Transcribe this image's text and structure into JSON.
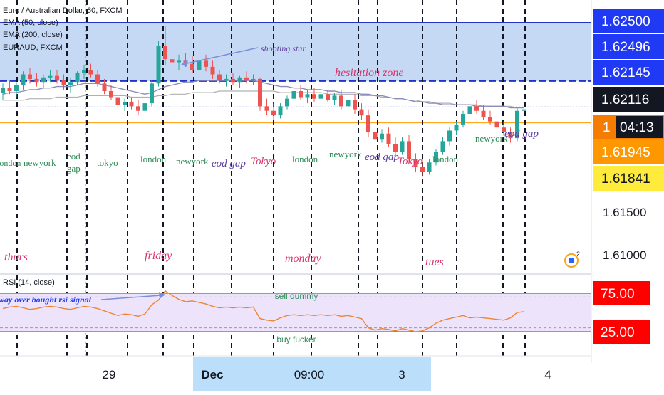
{
  "legend": {
    "symbol": "Euro / Australian Dollar, 60, FXCM",
    "ema50": "EMA (50, close)",
    "ema200": "EMA (200, close)",
    "compare": "EURAUD, FXCM"
  },
  "rsi_legend": "RSI (14, close)",
  "colors": {
    "up": "#26a69a",
    "down": "#ef5350",
    "zone": "#bcd2f2",
    "zone_line": "#2234c8",
    "ema50": "#8e8cb8",
    "ema200": "#b0b0b0",
    "rsi_line": "#ef8430",
    "rsi_bg": "#ede4fb",
    "session": "#2e8b57",
    "day": "#d8326d",
    "note": "#5b3fa0",
    "blue_tag": "#1f39f5"
  },
  "price_tags": [
    {
      "value": 1.625,
      "text": "1.62500",
      "bg": "#1f39f5",
      "fg": "#ffffff"
    },
    {
      "value": 1.62496,
      "text": "1.62496",
      "bg": "#1f39f5",
      "fg": "#ffffff"
    },
    {
      "value": 1.62145,
      "text": "1.62145",
      "bg": "#1f39f5",
      "fg": "#ffffff"
    },
    {
      "value": 1.62116,
      "text": "1.62116",
      "bg": "#131722",
      "fg": "#ffffff"
    },
    {
      "value": 1.62025,
      "text": "1",
      "text2": "04:13",
      "bg": "#f57c00",
      "fg": "#ffffff"
    },
    {
      "value": 1.61945,
      "text": "1.61945",
      "bg": "#ff9800",
      "fg": "#ffffff"
    },
    {
      "value": 1.61841,
      "text": "1.61841",
      "bg": "#ffeb3b",
      "fg": "#131722"
    }
  ],
  "price_axis": [
    "1.61500",
    "1.61000"
  ],
  "rsi_tags": [
    {
      "value": 75,
      "text": "75.00"
    },
    {
      "value": 25,
      "text": "25.00"
    }
  ],
  "time_axis": {
    "labels": [
      "29",
      "Dec",
      "09:00",
      "3",
      "4"
    ],
    "highlight_label": "Dec"
  },
  "annotations": {
    "shooting_star": "shooting star",
    "hesitation": "hesitation zone",
    "rsi_signal": "way over bought rsi signal",
    "sell": "sell dummy",
    "buy": "buy fucker",
    "eod_gap_top": "eod gap"
  },
  "sessions": [
    {
      "label": "london",
      "slot": "s1"
    },
    {
      "label": "newyork",
      "slot": "s2"
    },
    {
      "label": "eod",
      "slot": "s3"
    },
    {
      "label": "gap",
      "slot": "s4"
    },
    {
      "label": "tokyo",
      "slot": "s5"
    },
    {
      "label": "london",
      "slot": "s6"
    },
    {
      "label": "newyork",
      "slot": "s7"
    },
    {
      "label": "eod gap",
      "slot": "s8"
    },
    {
      "label": "Tokyo",
      "slot": "s9"
    },
    {
      "label": "london",
      "slot": "s10"
    },
    {
      "label": "newyork",
      "slot": "s11"
    },
    {
      "label": "eod gap",
      "slot": "s12"
    },
    {
      "label": "Tokyo",
      "slot": "s13"
    },
    {
      "label": "london",
      "slot": "s14"
    },
    {
      "label": "newyork",
      "slot": "s15"
    }
  ],
  "days": [
    "thurs",
    "friday",
    "monday",
    "tues"
  ],
  "chart_data": {
    "type": "candlestick",
    "interval": "60",
    "ylim": [
      1.6085,
      1.6265
    ],
    "hesitation_zone": [
      1.62116,
      1.625
    ],
    "horizontal_levels": [
      1.61945,
      1.61841
    ],
    "candles": [
      {
        "o": 1.6204,
        "h": 1.621,
        "l": 1.6199,
        "c": 1.6207
      },
      {
        "o": 1.6207,
        "h": 1.6212,
        "l": 1.6203,
        "c": 1.6205
      },
      {
        "o": 1.6205,
        "h": 1.6211,
        "l": 1.6201,
        "c": 1.6209
      },
      {
        "o": 1.6209,
        "h": 1.6218,
        "l": 1.6206,
        "c": 1.6216
      },
      {
        "o": 1.6216,
        "h": 1.622,
        "l": 1.621,
        "c": 1.6213
      },
      {
        "o": 1.6213,
        "h": 1.6217,
        "l": 1.6208,
        "c": 1.6211
      },
      {
        "o": 1.6211,
        "h": 1.6216,
        "l": 1.6207,
        "c": 1.6214
      },
      {
        "o": 1.6214,
        "h": 1.6219,
        "l": 1.6211,
        "c": 1.6215
      },
      {
        "o": 1.6215,
        "h": 1.6219,
        "l": 1.621,
        "c": 1.6212
      },
      {
        "o": 1.6212,
        "h": 1.6216,
        "l": 1.6206,
        "c": 1.6209
      },
      {
        "o": 1.6209,
        "h": 1.6214,
        "l": 1.6204,
        "c": 1.6211
      },
      {
        "o": 1.6211,
        "h": 1.6218,
        "l": 1.6209,
        "c": 1.6217
      },
      {
        "o": 1.6217,
        "h": 1.6222,
        "l": 1.6213,
        "c": 1.6219
      },
      {
        "o": 1.6219,
        "h": 1.6223,
        "l": 1.6214,
        "c": 1.6216
      },
      {
        "o": 1.6216,
        "h": 1.6219,
        "l": 1.6208,
        "c": 1.621
      },
      {
        "o": 1.621,
        "h": 1.6213,
        "l": 1.6203,
        "c": 1.6205
      },
      {
        "o": 1.6205,
        "h": 1.6209,
        "l": 1.6199,
        "c": 1.6201
      },
      {
        "o": 1.6201,
        "h": 1.6204,
        "l": 1.6193,
        "c": 1.6196
      },
      {
        "o": 1.6196,
        "h": 1.62,
        "l": 1.6192,
        "c": 1.6198
      },
      {
        "o": 1.6198,
        "h": 1.6201,
        "l": 1.6193,
        "c": 1.6195
      },
      {
        "o": 1.6195,
        "h": 1.6199,
        "l": 1.6189,
        "c": 1.6192
      },
      {
        "o": 1.6192,
        "h": 1.6198,
        "l": 1.619,
        "c": 1.6197
      },
      {
        "o": 1.6197,
        "h": 1.6212,
        "l": 1.6195,
        "c": 1.621
      },
      {
        "o": 1.621,
        "h": 1.6238,
        "l": 1.6208,
        "c": 1.6235
      },
      {
        "o": 1.6235,
        "h": 1.6248,
        "l": 1.6222,
        "c": 1.6226
      },
      {
        "o": 1.6226,
        "h": 1.6232,
        "l": 1.622,
        "c": 1.6224
      },
      {
        "o": 1.6224,
        "h": 1.6229,
        "l": 1.6219,
        "c": 1.6225
      },
      {
        "o": 1.6225,
        "h": 1.623,
        "l": 1.6221,
        "c": 1.6223
      },
      {
        "o": 1.6223,
        "h": 1.6228,
        "l": 1.6217,
        "c": 1.6219
      },
      {
        "o": 1.6219,
        "h": 1.6227,
        "l": 1.6216,
        "c": 1.6225
      },
      {
        "o": 1.6225,
        "h": 1.6229,
        "l": 1.6218,
        "c": 1.6221
      },
      {
        "o": 1.6221,
        "h": 1.6225,
        "l": 1.6213,
        "c": 1.6216
      },
      {
        "o": 1.6216,
        "h": 1.6219,
        "l": 1.621,
        "c": 1.6212
      },
      {
        "o": 1.6212,
        "h": 1.6216,
        "l": 1.6208,
        "c": 1.6213
      },
      {
        "o": 1.6213,
        "h": 1.6217,
        "l": 1.6209,
        "c": 1.6211
      },
      {
        "o": 1.6211,
        "h": 1.6215,
        "l": 1.6207,
        "c": 1.6214
      },
      {
        "o": 1.6214,
        "h": 1.6218,
        "l": 1.621,
        "c": 1.6212
      },
      {
        "o": 1.6212,
        "h": 1.6216,
        "l": 1.6209,
        "c": 1.6213
      },
      {
        "o": 1.6213,
        "h": 1.6214,
        "l": 1.6192,
        "c": 1.6195
      },
      {
        "o": 1.6195,
        "h": 1.62,
        "l": 1.6189,
        "c": 1.6192
      },
      {
        "o": 1.6192,
        "h": 1.6197,
        "l": 1.6186,
        "c": 1.6189
      },
      {
        "o": 1.6189,
        "h": 1.6197,
        "l": 1.6187,
        "c": 1.6195
      },
      {
        "o": 1.6195,
        "h": 1.6202,
        "l": 1.6193,
        "c": 1.62
      },
      {
        "o": 1.62,
        "h": 1.6207,
        "l": 1.6198,
        "c": 1.6205
      },
      {
        "o": 1.6205,
        "h": 1.6209,
        "l": 1.6199,
        "c": 1.6201
      },
      {
        "o": 1.6201,
        "h": 1.6206,
        "l": 1.6197,
        "c": 1.6203
      },
      {
        "o": 1.6203,
        "h": 1.6207,
        "l": 1.6198,
        "c": 1.62
      },
      {
        "o": 1.62,
        "h": 1.6205,
        "l": 1.6197,
        "c": 1.6203
      },
      {
        "o": 1.6203,
        "h": 1.6206,
        "l": 1.6198,
        "c": 1.6199
      },
      {
        "o": 1.6199,
        "h": 1.6204,
        "l": 1.6196,
        "c": 1.6202
      },
      {
        "o": 1.6202,
        "h": 1.6206,
        "l": 1.6193,
        "c": 1.6195
      },
      {
        "o": 1.6195,
        "h": 1.6201,
        "l": 1.6193,
        "c": 1.6199
      },
      {
        "o": 1.6199,
        "h": 1.6203,
        "l": 1.619,
        "c": 1.6193
      },
      {
        "o": 1.6193,
        "h": 1.6197,
        "l": 1.6186,
        "c": 1.6189
      },
      {
        "o": 1.6189,
        "h": 1.6193,
        "l": 1.6175,
        "c": 1.6178
      },
      {
        "o": 1.6178,
        "h": 1.6183,
        "l": 1.617,
        "c": 1.6173
      },
      {
        "o": 1.6173,
        "h": 1.618,
        "l": 1.6171,
        "c": 1.6177
      },
      {
        "o": 1.6177,
        "h": 1.6181,
        "l": 1.6168,
        "c": 1.617
      },
      {
        "o": 1.617,
        "h": 1.6175,
        "l": 1.6162,
        "c": 1.6165
      },
      {
        "o": 1.6165,
        "h": 1.6175,
        "l": 1.6163,
        "c": 1.6172
      },
      {
        "o": 1.6172,
        "h": 1.6176,
        "l": 1.6158,
        "c": 1.616
      },
      {
        "o": 1.616,
        "h": 1.6164,
        "l": 1.6152,
        "c": 1.6155
      },
      {
        "o": 1.6155,
        "h": 1.616,
        "l": 1.6149,
        "c": 1.6152
      },
      {
        "o": 1.6152,
        "h": 1.616,
        "l": 1.615,
        "c": 1.6158
      },
      {
        "o": 1.6158,
        "h": 1.6167,
        "l": 1.6156,
        "c": 1.6165
      },
      {
        "o": 1.6165,
        "h": 1.6175,
        "l": 1.6163,
        "c": 1.6172
      },
      {
        "o": 1.6172,
        "h": 1.6181,
        "l": 1.6169,
        "c": 1.6179
      },
      {
        "o": 1.6179,
        "h": 1.6185,
        "l": 1.6176,
        "c": 1.6183
      },
      {
        "o": 1.6183,
        "h": 1.6192,
        "l": 1.6181,
        "c": 1.619
      },
      {
        "o": 1.619,
        "h": 1.6198,
        "l": 1.6186,
        "c": 1.6195
      },
      {
        "o": 1.6195,
        "h": 1.6199,
        "l": 1.619,
        "c": 1.6192
      },
      {
        "o": 1.6192,
        "h": 1.6196,
        "l": 1.6186,
        "c": 1.6188
      },
      {
        "o": 1.6188,
        "h": 1.6192,
        "l": 1.6183,
        "c": 1.6185
      },
      {
        "o": 1.6185,
        "h": 1.6189,
        "l": 1.6179,
        "c": 1.6181
      },
      {
        "o": 1.6181,
        "h": 1.6185,
        "l": 1.6176,
        "c": 1.6178
      },
      {
        "o": 1.6178,
        "h": 1.6181,
        "l": 1.6171,
        "c": 1.6174
      },
      {
        "o": 1.6174,
        "h": 1.6194,
        "l": 1.6172,
        "c": 1.6192
      },
      {
        "o": 1.6192,
        "h": 1.6196,
        "l": 1.6185,
        "c": 1.6193
      }
    ],
    "ema50": [
      1.6203,
      1.6204,
      1.6204,
      1.6205,
      1.6206,
      1.6206,
      1.6207,
      1.6207,
      1.6208,
      1.6208,
      1.6208,
      1.6209,
      1.621,
      1.621,
      1.621,
      1.6209,
      1.6208,
      1.6207,
      1.6206,
      1.6205,
      1.6204,
      1.6203,
      1.6204,
      1.6206,
      1.6208,
      1.6209,
      1.621,
      1.6211,
      1.6211,
      1.6212,
      1.6212,
      1.6212,
      1.6212,
      1.6212,
      1.6212,
      1.6212,
      1.6212,
      1.6212,
      1.6211,
      1.621,
      1.6209,
      1.6208,
      1.6208,
      1.6207,
      1.6207,
      1.6206,
      1.6206,
      1.6206,
      1.6205,
      1.6205,
      1.6204,
      1.6204,
      1.6204,
      1.6203,
      1.6203,
      1.6202,
      1.6202,
      1.6201,
      1.62,
      1.62,
      1.6199,
      1.6198,
      1.6198,
      1.6197,
      1.6197,
      1.6196,
      1.6196,
      1.6196,
      1.6196,
      1.6196,
      1.6195,
      1.6195,
      1.6195,
      1.6195,
      1.6195,
      1.6194,
      1.6194,
      1.6194
    ],
    "ema200": [
      1.6199,
      1.6199,
      1.6199,
      1.6199,
      1.62,
      1.62,
      1.62,
      1.62,
      1.6201,
      1.6201,
      1.6201,
      1.6201,
      1.6202,
      1.6202,
      1.6202,
      1.6202,
      1.6202,
      1.6202,
      1.6202,
      1.6201,
      1.6201,
      1.6201,
      1.6201,
      1.6202,
      1.6202,
      1.6203,
      1.6203,
      1.6203,
      1.6204,
      1.6204,
      1.6204,
      1.6204,
      1.6205,
      1.6205,
      1.6205,
      1.6205,
      1.6205,
      1.6205,
      1.6205,
      1.6205,
      1.6205,
      1.6204,
      1.6204,
      1.6204,
      1.6204,
      1.6204,
      1.6204,
      1.6204,
      1.6203,
      1.6203,
      1.6203,
      1.6203,
      1.6203,
      1.6202,
      1.6202,
      1.6202,
      1.6201,
      1.6201,
      1.62,
      1.62,
      1.6199,
      1.6199,
      1.6198,
      1.6198,
      1.6197,
      1.6197,
      1.6197,
      1.6196,
      1.6196,
      1.6196,
      1.6196,
      1.6195,
      1.6195,
      1.6195,
      1.6195,
      1.6195,
      1.6194,
      1.6194
    ],
    "rsi": [
      55,
      57,
      58,
      56,
      54,
      55,
      57,
      58,
      57,
      55,
      54,
      56,
      58,
      57,
      55,
      52,
      49,
      46,
      48,
      47,
      45,
      48,
      60,
      66,
      78,
      72,
      67,
      64,
      65,
      63,
      61,
      58,
      56,
      57,
      56,
      57,
      56,
      57,
      42,
      40,
      39,
      43,
      46,
      47,
      46,
      47,
      46,
      47,
      46,
      47,
      45,
      46,
      44,
      42,
      30,
      27,
      29,
      28,
      26,
      29,
      27,
      25,
      26,
      30,
      36,
      40,
      42,
      44,
      46,
      43,
      44,
      43,
      42,
      41,
      40,
      43,
      50,
      51
    ],
    "rsi_levels": [
      75,
      25
    ]
  }
}
